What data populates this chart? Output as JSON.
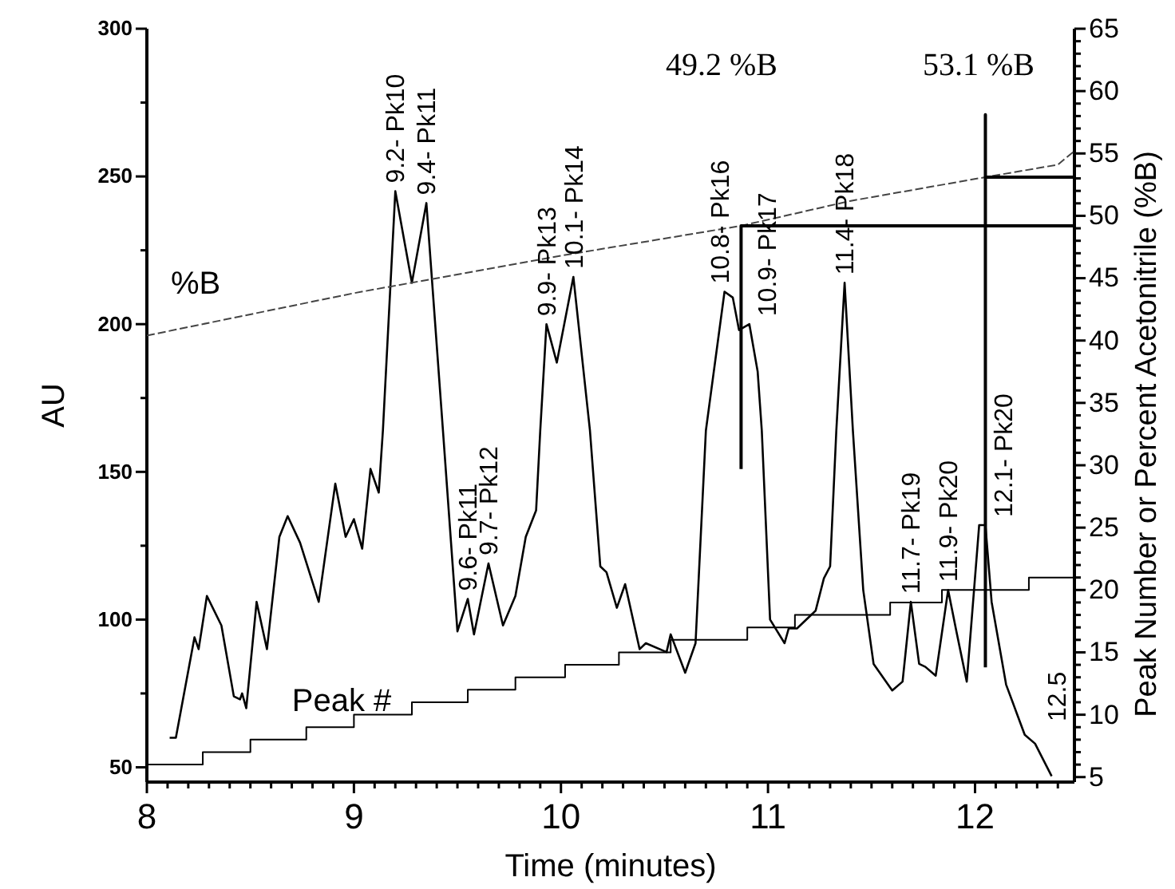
{
  "chart_data": {
    "type": "line",
    "xlabel": "Time (minutes)",
    "ylabel": "AU",
    "y2label": "Peak Number or Percent Acetonitrile (%B)",
    "xlim": [
      8,
      12.48
    ],
    "xticks": [
      8,
      {
        "value": 8.1,
        "label": null
      },
      {
        "value": 8.2,
        "label": null
      },
      {
        "value": 8.3,
        "label": null
      },
      {
        "value": 8.4,
        "label": null
      },
      {
        "value": 8.5,
        "label": null
      },
      {
        "value": 8.6,
        "label": null
      },
      {
        "value": 8.7,
        "label": null
      },
      {
        "value": 8.8,
        "label": null
      },
      {
        "value": 8.9,
        "label": null
      },
      9,
      {
        "value": 9.1,
        "label": null
      },
      {
        "value": 9.2,
        "label": null
      },
      {
        "value": 9.3,
        "label": null
      },
      {
        "value": 9.4,
        "label": null
      },
      {
        "value": 9.5,
        "label": null
      },
      {
        "value": 9.6,
        "label": null
      },
      {
        "value": 9.7,
        "label": null
      },
      {
        "value": 9.8,
        "label": null
      },
      {
        "value": 9.9,
        "label": null
      },
      10,
      {
        "value": 10.1,
        "label": null
      },
      {
        "value": 10.2,
        "label": null
      },
      {
        "value": 10.3,
        "label": null
      },
      {
        "value": 10.4,
        "label": null
      },
      {
        "value": 10.5,
        "label": null
      },
      {
        "value": 10.6,
        "label": null
      },
      {
        "value": 10.7,
        "label": null
      },
      {
        "value": 10.8,
        "label": null
      },
      {
        "value": 10.9,
        "label": null
      },
      11,
      {
        "value": 11.1,
        "label": null
      },
      {
        "value": 11.2,
        "label": null
      },
      {
        "value": 11.3,
        "label": null
      },
      {
        "value": 11.4,
        "label": null
      },
      {
        "value": 11.5,
        "label": null
      },
      {
        "value": 11.6,
        "label": null
      },
      {
        "value": 11.7,
        "label": null
      },
      {
        "value": 11.8,
        "label": null
      },
      {
        "value": 11.9,
        "label": null
      },
      12,
      {
        "value": 12.1,
        "label": null
      },
      {
        "value": 12.2,
        "label": null
      },
      {
        "value": 12.3,
        "label": null
      },
      {
        "value": 12.4,
        "label": null
      }
    ],
    "ylim": [
      45,
      300
    ],
    "yticks": [
      50,
      {
        "value": 75,
        "label": null
      },
      100,
      {
        "value": 125,
        "label": null
      },
      150,
      {
        "value": 175,
        "label": null
      },
      200,
      {
        "value": 225,
        "label": null
      },
      250,
      {
        "value": 275,
        "label": null
      },
      300
    ],
    "y2lim": [
      4.6,
      65
    ],
    "y2ticks": [
      5,
      {
        "value": 6,
        "label": null
      },
      {
        "value": 7,
        "label": null
      },
      {
        "value": 8,
        "label": null
      },
      {
        "value": 9,
        "label": null
      },
      10,
      {
        "value": 11,
        "label": null
      },
      {
        "value": 12,
        "label": null
      },
      {
        "value": 13,
        "label": null
      },
      {
        "value": 14,
        "label": null
      },
      15,
      {
        "value": 16,
        "label": null
      },
      {
        "value": 17,
        "label": null
      },
      {
        "value": 18,
        "label": null
      },
      {
        "value": 19,
        "label": null
      },
      20,
      {
        "value": 21,
        "label": null
      },
      {
        "value": 22,
        "label": null
      },
      {
        "value": 23,
        "label": null
      },
      {
        "value": 24,
        "label": null
      },
      25,
      {
        "value": 26,
        "label": null
      },
      {
        "value": 27,
        "label": null
      },
      {
        "value": 28,
        "label": null
      },
      {
        "value": 29,
        "label": null
      },
      30,
      {
        "value": 31,
        "label": null
      },
      {
        "value": 32,
        "label": null
      },
      {
        "value": 33,
        "label": null
      },
      {
        "value": 34,
        "label": null
      },
      35,
      {
        "value": 36,
        "label": null
      },
      {
        "value": 37,
        "label": null
      },
      {
        "value": 38,
        "label": null
      },
      {
        "value": 39,
        "label": null
      },
      40,
      {
        "value": 41,
        "label": null
      },
      {
        "value": 42,
        "label": null
      },
      {
        "value": 43,
        "label": null
      },
      {
        "value": 44,
        "label": null
      },
      45,
      {
        "value": 46,
        "label": null
      },
      {
        "value": 47,
        "label": null
      },
      {
        "value": 48,
        "label": null
      },
      {
        "value": 49,
        "label": null
      },
      50,
      {
        "value": 51,
        "label": null
      },
      {
        "value": 52,
        "label": null
      },
      {
        "value": 53,
        "label": null
      },
      {
        "value": 54,
        "label": null
      },
      55,
      {
        "value": 56,
        "label": null
      },
      {
        "value": 57,
        "label": null
      },
      {
        "value": 58,
        "label": null
      },
      {
        "value": 59,
        "label": null
      },
      60,
      {
        "value": 61,
        "label": null
      },
      {
        "value": 62,
        "label": null
      },
      {
        "value": 63,
        "label": null
      },
      {
        "value": 64,
        "label": null
      },
      65
    ],
    "series": [
      {
        "color": "#000000",
        "x": [
          8.11,
          8.14,
          8.23,
          8.25,
          8.29,
          8.36,
          8.42,
          8.45,
          8.46,
          8.48,
          8.53,
          8.58,
          8.64,
          8.68,
          8.74,
          8.83,
          8.91,
          8.96,
          9.0,
          9.04,
          9.08,
          9.12,
          9.14,
          9.2,
          9.28,
          9.35,
          9.43,
          9.5,
          9.55,
          9.58,
          9.65,
          9.72,
          9.78,
          9.83,
          9.88,
          9.9,
          9.93,
          9.98,
          10.06,
          10.14,
          10.19,
          10.22,
          10.27,
          10.31,
          10.38,
          10.41,
          10.51,
          10.53,
          10.6,
          10.65,
          10.7,
          10.79,
          10.83,
          10.86,
          10.91,
          10.95,
          10.97,
          11.01,
          11.08,
          11.1,
          11.14,
          11.23,
          11.27,
          11.3,
          11.33,
          11.37,
          11.41,
          11.46,
          11.51,
          11.6,
          11.65,
          11.69,
          11.73,
          11.76,
          11.81,
          11.87,
          11.91,
          11.96,
          12.02,
          12.05,
          12.08,
          12.15,
          12.24,
          12.29,
          12.37
        ],
        "values": [
          60,
          60,
          94,
          90,
          108,
          98,
          74,
          73,
          75,
          70,
          106,
          90,
          128,
          135,
          126,
          106,
          146,
          128,
          134,
          124,
          151,
          143,
          164,
          245,
          214,
          241,
          164,
          96,
          107,
          95,
          119,
          98,
          108,
          128,
          137,
          164,
          200,
          187,
          216,
          164,
          118,
          116,
          104,
          112,
          90,
          92,
          89,
          95,
          82,
          92,
          164,
          211,
          209,
          198,
          200,
          184,
          164,
          100,
          92,
          97,
          97,
          103,
          114,
          118,
          164,
          214,
          164,
          110,
          85,
          76,
          79,
          106,
          85,
          84,
          81,
          110,
          96,
          79,
          132,
          132,
          106,
          78,
          61,
          58,
          47
        ]
      },
      {
        "name": "%B",
        "type": "line",
        "axis": "y2",
        "line_style": "dashed",
        "color": "#444444",
        "x": [
          8,
          9,
          10,
          10.87,
          11.4,
          12.05,
          12.4,
          12.48
        ],
        "values": [
          40.4,
          43.8,
          46.8,
          49.2,
          51.2,
          53.1,
          54.1,
          55.2
        ]
      },
      {
        "name": "Peak #",
        "type": "step",
        "axis": "y2",
        "color": "#000000",
        "x": [
          8,
          8.27,
          8.5,
          8.77,
          9.0,
          9.28,
          9.55,
          9.78,
          10.02,
          10.28,
          10.53,
          10.9,
          11.13,
          11.59,
          11.84,
          12.26,
          12.48
        ],
        "values": [
          6,
          7,
          8,
          9,
          10,
          11,
          12,
          13,
          14,
          15,
          16,
          17,
          18,
          19,
          20,
          21,
          21
        ]
      },
      {
        "type": "line",
        "axis": "y2",
        "color": "#000000",
        "x": [
          10.87,
          10.87,
          12.48
        ],
        "values": [
          29.7,
          49.2,
          49.2
        ]
      },
      {
        "type": "line",
        "axis": "y2",
        "color": "#000000",
        "x": [
          12.05,
          12.05,
          12.05,
          12.48
        ],
        "values": [
          13.8,
          58.1,
          53.1,
          53.1
        ]
      }
    ],
    "annotations": [
      {
        "text": "9.2- Pk10",
        "x": 9.2,
        "y": 245
      },
      {
        "text": "9.4- Pk11",
        "x": 9.35,
        "y": 241
      },
      {
        "text": "9.6- Pk11",
        "x": 9.55,
        "y": 107
      },
      {
        "text": "9.7- Pk12",
        "x": 9.65,
        "y": 119
      },
      {
        "text": "9.9- Pk13",
        "x": 9.93,
        "y": 200
      },
      {
        "text": "10.1- Pk14",
        "x": 10.06,
        "y": 216
      },
      {
        "text": "10.8- Pk16",
        "x": 10.79,
        "y": 211
      },
      {
        "text": "10.9- Pk17",
        "x": 10.91,
        "y": 200
      },
      {
        "text": "11.4- Pk18",
        "x": 11.37,
        "y": 214
      },
      {
        "text": "11.7- Pk19",
        "x": 11.69,
        "y": 106
      },
      {
        "text": "11.9- Pk20",
        "x": 11.87,
        "y": 110
      },
      {
        "text": "12.1- Pk20",
        "x": 12.05,
        "y": 132
      },
      "12.5",
      "49.2 %B",
      "53.1 %B"
    ]
  }
}
